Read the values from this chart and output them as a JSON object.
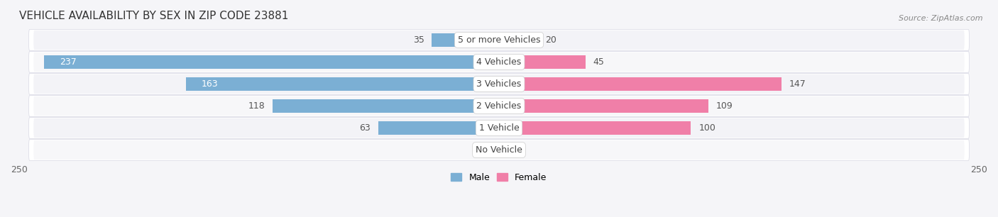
{
  "title": "VEHICLE AVAILABILITY BY SEX IN ZIP CODE 23881",
  "source": "Source: ZipAtlas.com",
  "categories": [
    "5 or more Vehicles",
    "4 Vehicles",
    "3 Vehicles",
    "2 Vehicles",
    "1 Vehicle",
    "No Vehicle"
  ],
  "male_values": [
    35,
    237,
    163,
    118,
    63,
    0
  ],
  "female_values": [
    20,
    45,
    147,
    109,
    100,
    0
  ],
  "male_color": "#7bafd4",
  "female_color": "#f07fa8",
  "row_light_color": "#f0f0f5",
  "row_dark_color": "#e8e8f0",
  "row_border_color": "#d8d8e4",
  "xlim": 250,
  "bar_height": 0.62,
  "title_fontsize": 11,
  "label_fontsize": 9,
  "tick_fontsize": 9,
  "source_fontsize": 8,
  "bg_color": "#f5f5f8",
  "inside_label_threshold": 150
}
